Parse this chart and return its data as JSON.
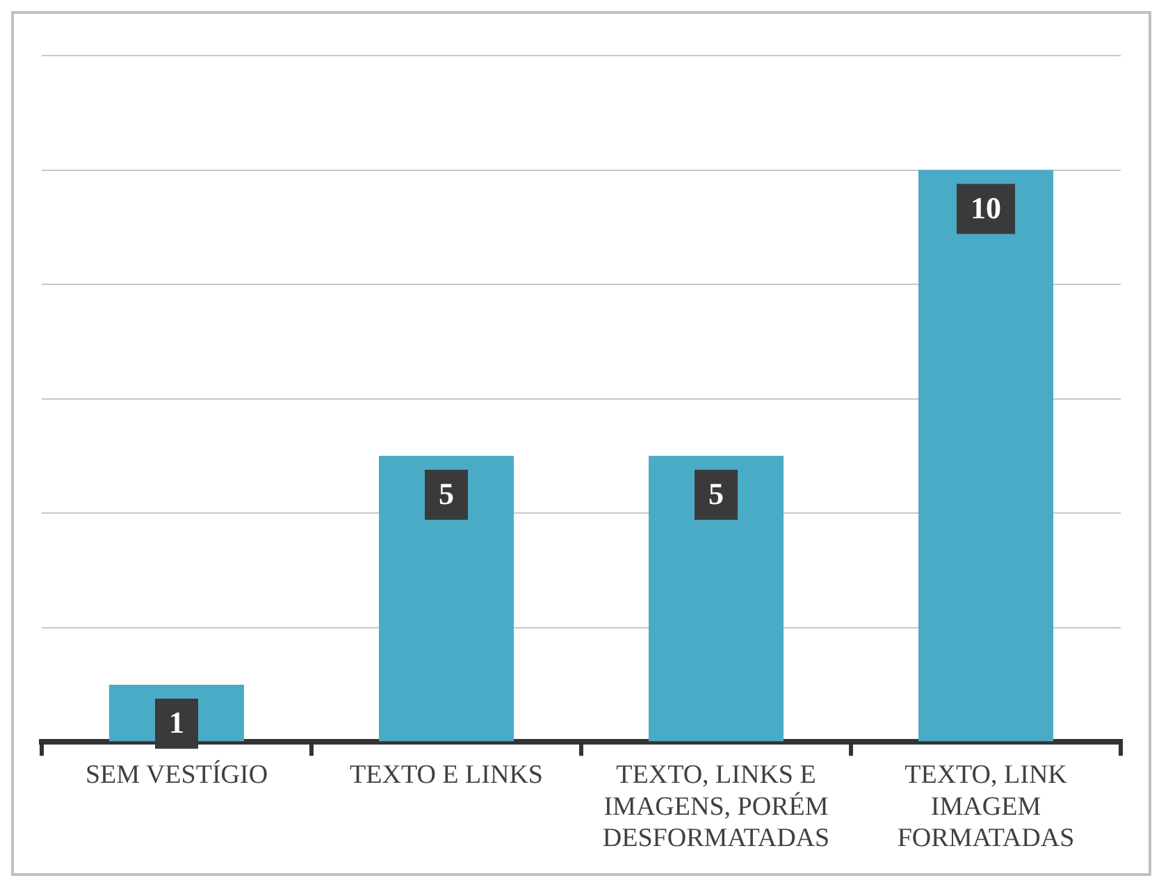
{
  "chart_data": {
    "type": "bar",
    "categories": [
      "SEM VESTÍGIO",
      "TEXTO E LINKS",
      "TEXTO, LINKS E IMAGENS, PORÉM DESFORMATADAS",
      "TEXTO, LINK IMAGEM FORMATADAS"
    ],
    "values": [
      1,
      5,
      5,
      10
    ],
    "color": "#4aabc6",
    "ylim": [
      0,
      12
    ],
    "yticks": [
      {
        "value": 0,
        "label": null
      },
      {
        "value": 2,
        "label": null
      },
      {
        "value": 4,
        "label": null
      },
      {
        "value": 6,
        "label": null
      },
      {
        "value": 8,
        "label": null
      },
      {
        "value": 10,
        "label": null
      },
      {
        "value": 12,
        "label": null
      }
    ],
    "grid": "y",
    "data_labels": true,
    "legend": false
  }
}
